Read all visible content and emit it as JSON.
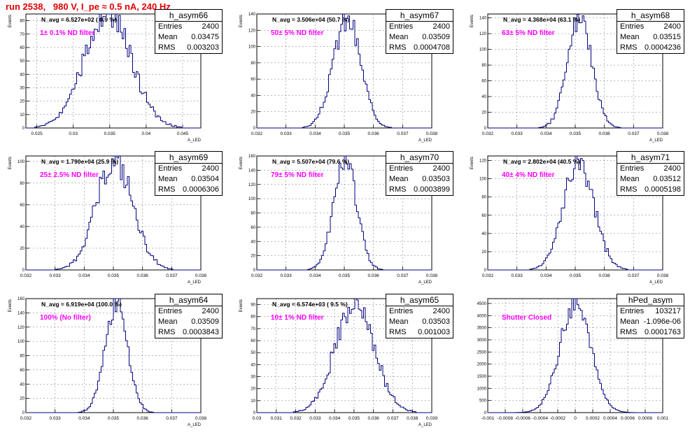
{
  "title": "run 2538,   980 V, I_pe ≈ 0.5 nA, 240 Hz",
  "stat_labels": {
    "entries": "Entries",
    "mean": "Mean",
    "rms": "RMS"
  },
  "colors": {
    "title": "#e00000",
    "hist": "#00007f",
    "filter_text": "#ff00ff",
    "grid": "#000000"
  },
  "chart_data": [
    {
      "type": "bar",
      "name": "h_asym66",
      "n_avg": "N_avg = 6.527e+02 ( 0.9 %)",
      "filter": "1± 0.1% ND filter",
      "entries": "2400",
      "mean": "0.03475",
      "rms": "0.003203",
      "ylabel": "Events",
      "xlabel": "A_LED",
      "xlim": [
        0.0235,
        0.0475
      ],
      "ylim": [
        0,
        85
      ],
      "xticks": [
        0.025,
        0.03,
        0.035,
        0.04,
        0.045
      ],
      "xtick_labels": [
        "0.025",
        "0.03",
        "0.035",
        "0.04",
        "0.045"
      ],
      "yticks": [
        0,
        10,
        20,
        30,
        40,
        50,
        60,
        70,
        80
      ],
      "ytick_labels": [
        "0",
        "10",
        "20",
        "30",
        "40",
        "50",
        "60",
        "70",
        "80"
      ],
      "peak": 85,
      "center": 0.03475,
      "sigma": 0.0032,
      "seed": 66
    },
    {
      "type": "bar",
      "name": "h_asym67",
      "n_avg": "N_avg = 3.506e+04 (50.7 %)",
      "filter": "50± 5% ND filter",
      "entries": "2400",
      "mean": "0.03509",
      "rms": "0.0004708",
      "ylabel": "Events",
      "xlabel": "A_LED",
      "xlim": [
        0.032,
        0.038
      ],
      "ylim": [
        0,
        140
      ],
      "xticks": [
        0.032,
        0.033,
        0.034,
        0.035,
        0.036,
        0.037,
        0.038
      ],
      "xtick_labels": [
        "0.032",
        "0.033",
        "0.034",
        "0.035",
        "0.036",
        "0.037",
        "0.038"
      ],
      "yticks": [
        0,
        20,
        40,
        60,
        80,
        100,
        120,
        140
      ],
      "ytick_labels": [
        "0",
        "20",
        "40",
        "60",
        "80",
        "100",
        "120",
        "140"
      ],
      "peak": 135,
      "center": 0.03509,
      "sigma": 0.00047,
      "seed": 67
    },
    {
      "type": "bar",
      "name": "h_asym68",
      "n_avg": "N_avg = 4.368e+04 (63.1 %)",
      "filter": "63± 5% ND filter",
      "entries": "2400",
      "mean": "0.03515",
      "rms": "0.0004236",
      "ylabel": "Events",
      "xlabel": "A_LED",
      "xlim": [
        0.032,
        0.038
      ],
      "ylim": [
        0,
        145
      ],
      "xticks": [
        0.032,
        0.033,
        0.034,
        0.035,
        0.036,
        0.037,
        0.038
      ],
      "xtick_labels": [
        "0.032",
        "0.033",
        "0.034",
        "0.035",
        "0.036",
        "0.037",
        "0.038"
      ],
      "yticks": [
        0,
        20,
        40,
        60,
        80,
        100,
        120,
        140
      ],
      "ytick_labels": [
        "0",
        "20",
        "40",
        "60",
        "80",
        "100",
        "120",
        "140"
      ],
      "peak": 140,
      "center": 0.03515,
      "sigma": 0.00042,
      "seed": 68
    },
    {
      "type": "bar",
      "name": "h_asym69",
      "n_avg": "N_avg = 1.790e+04 (25.9 %)",
      "filter": "25± 2.5% ND filter",
      "entries": "2400",
      "mean": "0.03504",
      "rms": "0.0006306",
      "ylabel": "Events",
      "xlabel": "A_LED",
      "xlim": [
        0.032,
        0.038
      ],
      "ylim": [
        0,
        105
      ],
      "xticks": [
        0.032,
        0.033,
        0.034,
        0.035,
        0.036,
        0.037,
        0.038
      ],
      "xtick_labels": [
        "0.032",
        "0.033",
        "0.034",
        "0.035",
        "0.036",
        "0.037",
        "0.038"
      ],
      "yticks": [
        0,
        20,
        40,
        60,
        80,
        100
      ],
      "ytick_labels": [
        "0",
        "20",
        "40",
        "60",
        "80",
        "100"
      ],
      "peak": 100,
      "center": 0.03504,
      "sigma": 0.00063,
      "seed": 69
    },
    {
      "type": "bar",
      "name": "h_asym70",
      "n_avg": "N_avg = 5.507e+04 (79.6 %)",
      "filter": "79± 5% ND filter",
      "entries": "2400",
      "mean": "0.03503",
      "rms": "0.0003899",
      "ylabel": "Events",
      "xlabel": "A_LED",
      "xlim": [
        0.032,
        0.038
      ],
      "ylim": [
        0,
        160
      ],
      "xticks": [
        0.032,
        0.033,
        0.034,
        0.035,
        0.036,
        0.037,
        0.038
      ],
      "xtick_labels": [
        "0.032",
        "0.033",
        "0.034",
        "0.035",
        "0.036",
        "0.037",
        "0.038"
      ],
      "yticks": [
        0,
        20,
        40,
        60,
        80,
        100,
        120,
        140,
        160
      ],
      "ytick_labels": [
        "0",
        "20",
        "40",
        "60",
        "80",
        "100",
        "120",
        "140",
        "160"
      ],
      "peak": 155,
      "center": 0.03503,
      "sigma": 0.00039,
      "seed": 70
    },
    {
      "type": "bar",
      "name": "h_asym71",
      "n_avg": "N_avg = 2.802e+04 (40.5 %)",
      "filter": "40± 4% ND filter",
      "entries": "2400",
      "mean": "0.03512",
      "rms": "0.0005198",
      "ylabel": "Events",
      "xlabel": "A_LED",
      "xlim": [
        0.032,
        0.038
      ],
      "ylim": [
        0,
        125
      ],
      "xticks": [
        0.032,
        0.033,
        0.034,
        0.035,
        0.036,
        0.037,
        0.038
      ],
      "xtick_labels": [
        "0.032",
        "0.033",
        "0.034",
        "0.035",
        "0.036",
        "0.037",
        "0.038"
      ],
      "yticks": [
        0,
        20,
        40,
        60,
        80,
        100,
        120
      ],
      "ytick_labels": [
        "0",
        "20",
        "40",
        "60",
        "80",
        "100",
        "120"
      ],
      "peak": 120,
      "center": 0.03512,
      "sigma": 0.00052,
      "seed": 71
    },
    {
      "type": "bar",
      "name": "h_asym64",
      "n_avg": "N_avg = 6.919e+04 (100.0 %)",
      "filter": "100% (No filter)",
      "entries": "2400",
      "mean": "0.03509",
      "rms": "0.0003843",
      "ylabel": "Events",
      "xlabel": "A_LED",
      "xlim": [
        0.032,
        0.038
      ],
      "ylim": [
        0,
        160
      ],
      "xticks": [
        0.032,
        0.033,
        0.034,
        0.035,
        0.036,
        0.037,
        0.038
      ],
      "xtick_labels": [
        "0.032",
        "0.033",
        "0.034",
        "0.035",
        "0.036",
        "0.037",
        "0.038"
      ],
      "yticks": [
        0,
        20,
        40,
        60,
        80,
        100,
        120,
        140,
        160
      ],
      "ytick_labels": [
        "0",
        "20",
        "40",
        "60",
        "80",
        "100",
        "120",
        "140",
        "160"
      ],
      "peak": 155,
      "center": 0.03509,
      "sigma": 0.00038,
      "seed": 64
    },
    {
      "type": "bar",
      "name": "h_asym65",
      "n_avg": "N_avg = 6.574e+03 ( 9.5 %)",
      "filter": "10± 1% ND filter",
      "entries": "2400",
      "mean": "0.03503",
      "rms": "0.001003",
      "ylabel": "Events",
      "xlabel": "A_LED",
      "xlim": [
        0.03,
        0.039
      ],
      "ylim": [
        0,
        95
      ],
      "xticks": [
        0.03,
        0.031,
        0.032,
        0.033,
        0.034,
        0.035,
        0.036,
        0.037,
        0.038,
        0.039
      ],
      "xtick_labels": [
        "0.03",
        "0.031",
        "0.032",
        "0.033",
        "0.034",
        "0.035",
        "0.036",
        "0.037",
        "0.038",
        "0.039"
      ],
      "yticks": [
        0,
        10,
        20,
        30,
        40,
        50,
        60,
        70,
        80,
        90
      ],
      "ytick_labels": [
        "0",
        "10",
        "20",
        "30",
        "40",
        "50",
        "60",
        "70",
        "80",
        "90"
      ],
      "peak": 92,
      "center": 0.03503,
      "sigma": 0.001,
      "seed": 65
    },
    {
      "type": "bar",
      "name": "hPed_asym",
      "n_avg": "",
      "filter": "Shutter Closed",
      "entries": "103217",
      "mean": "-1.096e-06",
      "rms": "0.0001763",
      "ylabel": "",
      "xlabel": "",
      "xlim": [
        -0.001,
        0.001
      ],
      "ylim": [
        0,
        4700
      ],
      "xticks": [
        -0.001,
        -0.0008,
        -0.0006,
        -0.0004,
        -0.0002,
        0,
        0.0002,
        0.0004,
        0.0006,
        0.0008,
        0.001
      ],
      "xtick_labels": [
        "-0.001",
        "-0.0008",
        "-0.0006",
        "-0.0004",
        "-0.0002",
        "0",
        "0.0002",
        "0.0004",
        "0.0006",
        "0.0008",
        "0.001"
      ],
      "yticks": [
        0,
        500,
        1000,
        1500,
        2000,
        2500,
        3000,
        3500,
        4000,
        4500
      ],
      "ytick_labels": [
        "0",
        "500",
        "1000",
        "1500",
        "2000",
        "2500",
        "3000",
        "3500",
        "4000",
        "4500"
      ],
      "peak": 4500,
      "center": 0,
      "sigma": 0.000176,
      "seed": 9
    }
  ]
}
